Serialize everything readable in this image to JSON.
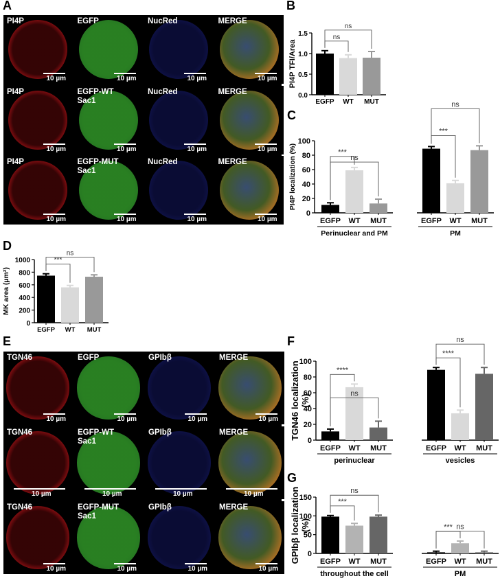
{
  "panel_labels": {
    "A": "A",
    "B": "B",
    "C": "C",
    "D": "D",
    "E": "E",
    "F": "F",
    "G": "G"
  },
  "micrograph_A": {
    "rows": [
      {
        "cells": [
          {
            "title": "PI4P",
            "channel": "red",
            "scale": "10 µm"
          },
          {
            "title": "EGFP",
            "channel": "green",
            "scale": "10 µm"
          },
          {
            "title": "NucRed",
            "channel": "blue",
            "scale": "10 µm"
          },
          {
            "title": "MERGE",
            "channel": "merge",
            "scale": "10 µm"
          }
        ]
      },
      {
        "cells": [
          {
            "title": "PI4P",
            "channel": "red",
            "scale": "10 µm"
          },
          {
            "title": "EGFP-WT\nSac1",
            "channel": "green",
            "scale": "10 µm"
          },
          {
            "title": "NucRed",
            "channel": "blue",
            "scale": "10 µm"
          },
          {
            "title": "MERGE",
            "channel": "merge",
            "scale": "10 µm"
          }
        ]
      },
      {
        "cells": [
          {
            "title": "PI4P",
            "channel": "red",
            "scale": "10 µm"
          },
          {
            "title": "EGFP-MUT\nSac1",
            "channel": "green",
            "scale": "10 µm"
          },
          {
            "title": "NucRed",
            "channel": "blue",
            "scale": "10 µm"
          },
          {
            "title": "MERGE",
            "channel": "merge",
            "scale": "10 µm"
          }
        ]
      }
    ],
    "colors": {
      "red": "#c8141a",
      "green": "#3aa832",
      "blue": "#2230b0"
    }
  },
  "micrograph_E": {
    "rows": [
      {
        "cells": [
          {
            "title": "TGN46",
            "channel": "red",
            "scale": "10 µm"
          },
          {
            "title": "EGFP",
            "channel": "green",
            "scale": "10 µm"
          },
          {
            "title": "GPIbβ",
            "channel": "blue",
            "scale": "10 µm"
          },
          {
            "title": "MERGE",
            "channel": "merge",
            "scale": "10 µm"
          }
        ]
      },
      {
        "cells": [
          {
            "title": "TGN46",
            "channel": "red",
            "scale": "10 µm"
          },
          {
            "title": "EGFP-WT\nSac1",
            "channel": "green",
            "scale": "10 µm"
          },
          {
            "title": "GPIbβ",
            "channel": "blue",
            "scale": "10 µm"
          },
          {
            "title": "MERGE",
            "channel": "merge",
            "scale": "10 µm"
          }
        ]
      },
      {
        "cells": [
          {
            "title": "TGN46",
            "channel": "red",
            "scale": "10 µm"
          },
          {
            "title": "EGFP-MUT\nSac1",
            "channel": "green",
            "scale": "10 µm"
          },
          {
            "title": "GPIbβ",
            "channel": "blue",
            "scale": "10 µm"
          },
          {
            "title": "MERGE",
            "channel": "merge",
            "scale": "10 µm"
          }
        ]
      }
    ]
  },
  "chart_data": [
    {
      "id": "B",
      "type": "bar",
      "ylabel": "PI4P TFI/Area",
      "ylim": [
        0,
        1.5
      ],
      "yticks": [
        0,
        0.5,
        1.0,
        1.5
      ],
      "ytick_labels": [
        "0.0",
        "0.5",
        "1.0",
        "1.5"
      ],
      "groups": [
        {
          "label": "",
          "bars": [
            {
              "category": "EGFP",
              "value": 1.0,
              "error": 0.07,
              "color": "#000000"
            },
            {
              "category": "WT",
              "value": 0.89,
              "error": 0.08,
              "color": "#d9d9d9"
            },
            {
              "category": "MUT",
              "value": 0.9,
              "error": 0.15,
              "color": "#999999"
            }
          ]
        }
      ],
      "significance": [
        {
          "from": 0,
          "to": 1,
          "text": "ns"
        },
        {
          "from": 0,
          "to": 2,
          "text": "ns"
        }
      ]
    },
    {
      "id": "C",
      "type": "bar",
      "ylabel": "PI4P localization (%)",
      "ylim": [
        0,
        100
      ],
      "yticks": [
        0,
        20,
        40,
        60,
        80,
        100
      ],
      "ytick_labels": [
        "0",
        "20",
        "40",
        "60",
        "80",
        "100"
      ],
      "groups": [
        {
          "label": "Perinuclear and PM",
          "bars": [
            {
              "category": "EGFP",
              "value": 11,
              "error": 3,
              "color": "#000000"
            },
            {
              "category": "WT",
              "value": 59,
              "error": 4,
              "color": "#d9d9d9"
            },
            {
              "category": "MUT",
              "value": 13,
              "error": 6,
              "color": "#999999"
            }
          ]
        },
        {
          "label": "PM",
          "bars": [
            {
              "category": "EGFP",
              "value": 89,
              "error": 3,
              "color": "#000000"
            },
            {
              "category": "WT",
              "value": 41,
              "error": 4,
              "color": "#d9d9d9"
            },
            {
              "category": "MUT",
              "value": 87,
              "error": 6,
              "color": "#999999"
            }
          ]
        }
      ],
      "significance": [
        {
          "group": 0,
          "from": 0,
          "to": 1,
          "text": "***"
        },
        {
          "group": 0,
          "from": 0,
          "to": 2,
          "text": "ns"
        },
        {
          "group": 1,
          "from": 0,
          "to": 1,
          "text": "***"
        },
        {
          "group": 1,
          "from": 0,
          "to": 2,
          "text": "ns"
        }
      ]
    },
    {
      "id": "D",
      "type": "bar",
      "ylabel": "MK area (µm²)",
      "ylim": [
        0,
        1000
      ],
      "yticks": [
        0,
        200,
        400,
        600,
        800,
        1000
      ],
      "ytick_labels": [
        "0",
        "200",
        "400",
        "600",
        "800",
        "1000"
      ],
      "groups": [
        {
          "label": "",
          "bars": [
            {
              "category": "EGFP",
              "value": 745,
              "error": 30,
              "color": "#000000"
            },
            {
              "category": "WT",
              "value": 560,
              "error": 30,
              "color": "#d9d9d9"
            },
            {
              "category": "MUT",
              "value": 728,
              "error": 30,
              "color": "#999999"
            }
          ]
        }
      ],
      "significance": [
        {
          "from": 0,
          "to": 1,
          "text": "***"
        },
        {
          "from": 0,
          "to": 2,
          "text": "ns"
        }
      ]
    },
    {
      "id": "F",
      "type": "bar",
      "ylabel": "TGN46 localization",
      "ylabel2": "(%)",
      "ylim": [
        0,
        100
      ],
      "yticks": [
        0,
        20,
        40,
        60,
        80,
        100
      ],
      "ytick_labels": [
        "0",
        "20",
        "40",
        "60",
        "80",
        "100"
      ],
      "groups": [
        {
          "label": "perinuclear",
          "bars": [
            {
              "category": "EGFP",
              "value": 11,
              "error": 3,
              "color": "#000000"
            },
            {
              "category": "WT",
              "value": 67,
              "error": 4,
              "color": "#d9d9d9"
            },
            {
              "category": "MUT",
              "value": 16,
              "error": 8,
              "color": "#666666"
            }
          ]
        },
        {
          "label": "vesicles",
          "bars": [
            {
              "category": "EGFP",
              "value": 89,
              "error": 3,
              "color": "#000000"
            },
            {
              "category": "WT",
              "value": 34,
              "error": 4,
              "color": "#d9d9d9"
            },
            {
              "category": "MUT",
              "value": 84,
              "error": 8,
              "color": "#666666"
            }
          ]
        }
      ],
      "significance": [
        {
          "group": 0,
          "from": 0,
          "to": 1,
          "text": "****"
        },
        {
          "group": 0,
          "from": 0,
          "to": 2,
          "text": "ns"
        },
        {
          "group": 1,
          "from": 0,
          "to": 1,
          "text": "****"
        },
        {
          "group": 1,
          "from": 0,
          "to": 2,
          "text": "ns"
        }
      ]
    },
    {
      "id": "G",
      "type": "bar",
      "ylabel": "GPIbβ localization",
      "ylabel2": "(%)",
      "ylim": [
        0,
        150
      ],
      "yticks": [
        0,
        50,
        100,
        150
      ],
      "ytick_labels": [
        "0",
        "50",
        "100",
        "150"
      ],
      "groups": [
        {
          "label": "throughout the cell",
          "bars": [
            {
              "category": "EGFP",
              "value": 98,
              "error": 3,
              "color": "#000000"
            },
            {
              "category": "WT",
              "value": 74,
              "error": 6,
              "color": "#b3b3b3"
            },
            {
              "category": "MUT",
              "value": 98,
              "error": 4,
              "color": "#666666"
            }
          ]
        },
        {
          "label": "PM",
          "bars": [
            {
              "category": "EGFP",
              "value": 3,
              "error": 3,
              "color": "#000000"
            },
            {
              "category": "WT",
              "value": 27,
              "error": 6,
              "color": "#b3b3b3"
            },
            {
              "category": "MUT",
              "value": 3,
              "error": 3,
              "color": "#666666"
            }
          ]
        }
      ],
      "significance": [
        {
          "group": 0,
          "from": 0,
          "to": 1,
          "text": "***"
        },
        {
          "group": 0,
          "from": 0,
          "to": 2,
          "text": "ns"
        },
        {
          "group": 1,
          "from": 0,
          "to": 1,
          "text": "***"
        },
        {
          "group": 1,
          "from": 0,
          "to": 2,
          "text": "ns"
        }
      ]
    }
  ]
}
